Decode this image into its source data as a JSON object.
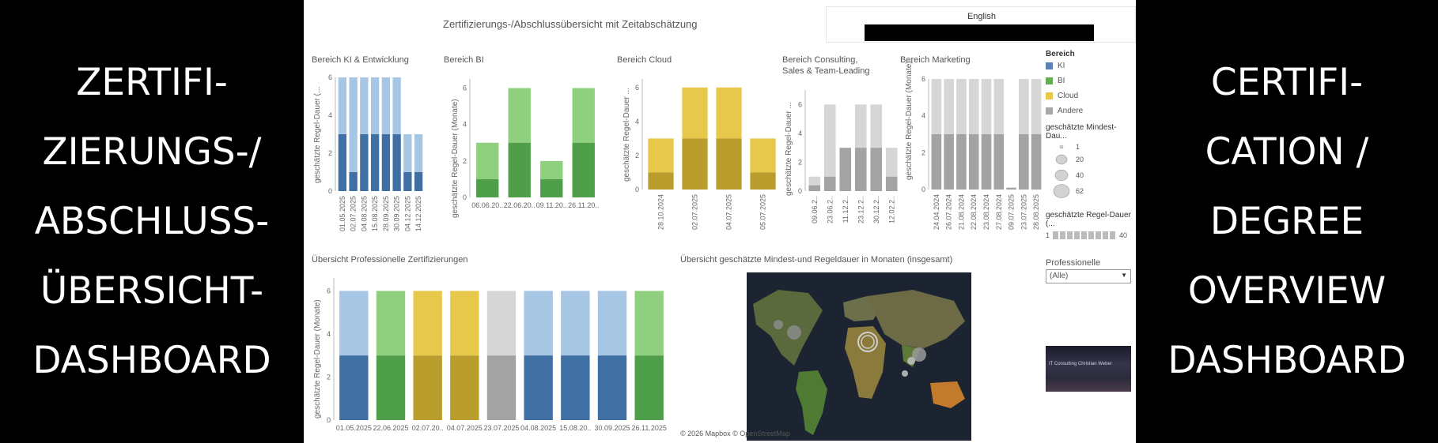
{
  "left_title": [
    "ZERTIFI-",
    "ZIERUNGS-/",
    "ABSCHLUSS-",
    "ÜBERSICHT-",
    "DASHBOARD"
  ],
  "right_title": [
    "CERTIFI-",
    "CATION /",
    "DEGREE",
    "OVERVIEW",
    "DASHBOARD"
  ],
  "dashboard": {
    "title": "Zertifizierungs-/Abschlussübersicht mit Zeitabschätzung",
    "language_label": "English"
  },
  "colors": {
    "ki_dark": "#3f6fa3",
    "ki_light": "#a7c6e3",
    "bi_dark": "#4e9e4a",
    "bi_light": "#8fd07e",
    "cloud_dark": "#b99e2e",
    "cloud_light": "#e8c84a",
    "andere_dark": "#a3a3a3",
    "andere_light": "#d6d6d6"
  },
  "chart_data": [
    {
      "type": "bar",
      "title": "Bereich KI & Entwicklung",
      "ylabel": "geschätzte Regel-Dauer (...",
      "ylim": [
        0,
        6
      ],
      "yticks": [
        0,
        2,
        4,
        6
      ],
      "categories": [
        "01.05.2025",
        "02.07.2025",
        "04.08.2025",
        "15.08.2025",
        "28.09.2025",
        "30.09.2025",
        "04.12.2025",
        "14.12.2025"
      ],
      "series": [
        {
          "values": [
            3,
            1,
            3,
            3,
            3,
            3,
            1,
            1
          ]
        },
        {
          "values": [
            6,
            6,
            6,
            6,
            6,
            6,
            3,
            3
          ]
        }
      ]
    },
    {
      "type": "bar",
      "title": "Bereich BI",
      "ylabel": "geschätzte Regel-Dauer (Monate)",
      "ylim": [
        0,
        6.5
      ],
      "yticks": [
        0,
        2,
        4,
        6
      ],
      "categories": [
        "06.06.20..",
        "22.06.20..",
        "09.11.20..",
        "26.11.20.."
      ],
      "series": [
        {
          "values": [
            1,
            3,
            1,
            3
          ]
        },
        {
          "values": [
            3,
            6,
            2,
            6
          ]
        }
      ]
    },
    {
      "type": "bar",
      "title": "Bereich Cloud",
      "ylabel": "geschätzte Regel-Dauer ...",
      "ylim": [
        0,
        6.5
      ],
      "yticks": [
        0,
        2,
        4,
        6
      ],
      "categories": [
        "28.10.2024",
        "02.07.2025",
        "04.07.2025",
        "05.07.2025"
      ],
      "series": [
        {
          "values": [
            1,
            3,
            3,
            1
          ]
        },
        {
          "values": [
            3,
            6,
            6,
            3
          ]
        }
      ]
    },
    {
      "type": "bar",
      "title": "Bereich Consulting, Sales & Team-Leading",
      "ylabel": "geschätzte Regel-Dauer ...",
      "ylim": [
        0,
        7
      ],
      "yticks": [
        0,
        2,
        4,
        6
      ],
      "categories": [
        "09.06.2..",
        "23.06.2..",
        "11.12.2..",
        "23.12.2..",
        "30.12.2..",
        "12.02.2.."
      ],
      "series": [
        {
          "values": [
            0.4,
            1,
            3,
            3,
            3,
            1
          ]
        },
        {
          "values": [
            1,
            6,
            3,
            6,
            6,
            3
          ]
        }
      ]
    },
    {
      "type": "bar",
      "title": "Bereich Marketing",
      "ylabel": "geschätzte Regel-Dauer (Monate)",
      "ylim": [
        0,
        6
      ],
      "yticks": [
        0,
        2,
        4,
        6
      ],
      "categories": [
        "24.04.2024",
        "26.07.2024",
        "21.08.2024",
        "22.08.2024",
        "23.08.2024",
        "27.08.2024",
        "09.07.2025",
        "23.07.2025",
        "28.08.2025"
      ],
      "series": [
        {
          "values": [
            3,
            3,
            3,
            3,
            3,
            3,
            0.1,
            3,
            3
          ]
        },
        {
          "values": [
            6,
            6,
            6,
            6,
            6,
            6,
            0.1,
            6,
            6
          ]
        }
      ]
    },
    {
      "type": "bar",
      "title": "Übersicht Professionelle Zertifizierungen",
      "ylabel": "geschätzte Regel-Dauer (Monate)",
      "ylim": [
        0,
        6.6
      ],
      "yticks": [
        0,
        2,
        4,
        6
      ],
      "categories": [
        "01.05.2025",
        "22.06.2025",
        "02.07.20..",
        "04.07.2025",
        "23.07.2025",
        "04.08.2025",
        "15.08.20..",
        "30.09.2025",
        "26.11.2025"
      ],
      "category_colors": [
        "ki",
        "bi",
        "cloud",
        "cloud",
        "andere",
        "ki",
        "ki",
        "ki",
        "bi"
      ],
      "series": [
        {
          "values": [
            3,
            3,
            3,
            3,
            3,
            3,
            3,
            3,
            3
          ]
        },
        {
          "values": [
            6,
            6,
            6,
            6,
            6,
            6,
            6,
            6,
            6
          ]
        }
      ]
    }
  ],
  "bar_colors": [
    {
      "dark": "ki_dark",
      "light": "ki_light"
    },
    {
      "dark": "bi_dark",
      "light": "bi_light"
    },
    {
      "dark": "cloud_dark",
      "light": "cloud_light"
    },
    {
      "dark": "andere_dark",
      "light": "andere_light"
    },
    {
      "dark": "andere_dark",
      "light": "andere_light"
    }
  ],
  "legend": {
    "title": "Bereich",
    "items": [
      {
        "label": "KI",
        "color": "#5b82b0"
      },
      {
        "label": "BI",
        "color": "#63ad55"
      },
      {
        "label": "Cloud",
        "color": "#e8c84a"
      },
      {
        "label": "Andere",
        "color": "#a8a8a8"
      }
    ],
    "size_title": "geschätzte Mindest-Dau...",
    "size_items": [
      "1",
      "20",
      "40",
      "62"
    ],
    "color_title": "geschätzte Regel-Dauer (...",
    "color_min": "1",
    "color_max": "40"
  },
  "filter": {
    "title": "Professionelle Zertifikate",
    "value": "(Alle)"
  },
  "map": {
    "title": "Übersicht geschätzte Mindest-und Regeldauer in Monaten (insgesamt)",
    "credit": "© 2026 Mapbox  © OpenStreetMap"
  },
  "thumbnail_text": "IT Consulting Christian Weber"
}
